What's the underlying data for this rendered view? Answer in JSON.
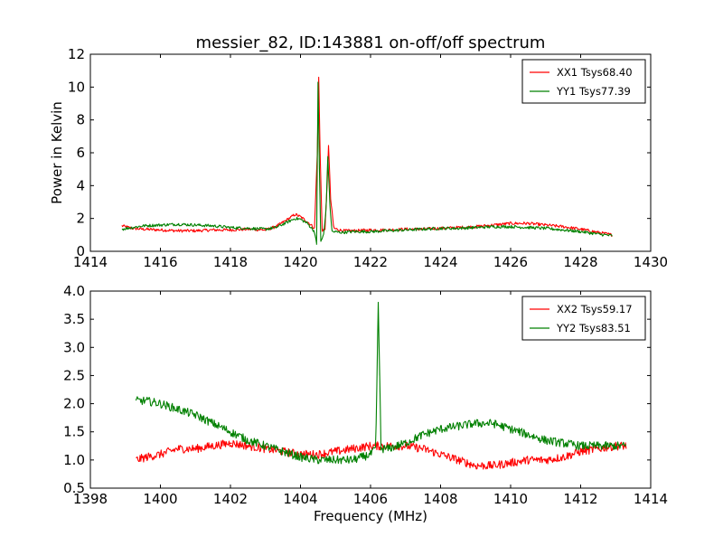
{
  "figure": {
    "title": "messier_82, ID:143881 on-off/off spectrum"
  },
  "chart_data": [
    {
      "type": "line",
      "title": "messier_82, ID:143881 on-off/off spectrum",
      "xlabel": "",
      "ylabel": "Power in Kelvin",
      "xlim": [
        1414,
        1430
      ],
      "ylim": [
        0,
        12
      ],
      "xticks": [
        1414,
        1416,
        1418,
        1420,
        1422,
        1424,
        1426,
        1428,
        1430
      ],
      "yticks": [
        0,
        2,
        4,
        6,
        8,
        10,
        12
      ],
      "legend_position": "top-right",
      "series": [
        {
          "name": "XX1 Tsys68.40",
          "color": "#ff0000",
          "x": [
            1414.9,
            1415.2,
            1415.5,
            1416.0,
            1416.5,
            1417.0,
            1417.5,
            1418.0,
            1418.5,
            1419.0,
            1419.3,
            1419.6,
            1419.85,
            1420.0,
            1420.2,
            1420.4,
            1420.48,
            1420.52,
            1420.56,
            1420.62,
            1420.7,
            1420.76,
            1420.8,
            1420.86,
            1420.95,
            1421.2,
            1421.5,
            1422.0,
            1422.5,
            1423.0,
            1423.5,
            1424.0,
            1424.5,
            1425.0,
            1425.5,
            1426.0,
            1426.5,
            1427.0,
            1427.5,
            1428.0,
            1428.5,
            1428.9
          ],
          "y": [
            1.55,
            1.4,
            1.35,
            1.3,
            1.25,
            1.25,
            1.3,
            1.3,
            1.35,
            1.3,
            1.5,
            1.9,
            2.25,
            2.1,
            1.8,
            1.4,
            6.0,
            10.6,
            6.0,
            1.2,
            1.4,
            4.0,
            6.5,
            3.2,
            1.4,
            1.25,
            1.25,
            1.3,
            1.3,
            1.35,
            1.35,
            1.4,
            1.45,
            1.5,
            1.6,
            1.7,
            1.7,
            1.6,
            1.5,
            1.35,
            1.15,
            1.0
          ]
        },
        {
          "name": "YY1 Tsys77.39",
          "color": "#008000",
          "x": [
            1414.9,
            1415.2,
            1415.5,
            1416.0,
            1416.5,
            1417.0,
            1417.5,
            1418.0,
            1418.5,
            1419.0,
            1419.3,
            1419.6,
            1419.85,
            1420.0,
            1420.2,
            1420.4,
            1420.46,
            1420.5,
            1420.54,
            1420.58,
            1420.66,
            1420.73,
            1420.78,
            1420.84,
            1420.9,
            1421.2,
            1421.5,
            1422.0,
            1422.5,
            1423.0,
            1423.5,
            1424.0,
            1424.5,
            1425.0,
            1425.5,
            1426.0,
            1426.5,
            1427.0,
            1427.5,
            1428.0,
            1428.5,
            1428.9
          ],
          "y": [
            1.35,
            1.45,
            1.55,
            1.6,
            1.65,
            1.6,
            1.55,
            1.45,
            1.4,
            1.35,
            1.45,
            1.75,
            2.0,
            1.95,
            1.7,
            1.2,
            0.4,
            10.3,
            5.0,
            0.6,
            1.0,
            2.5,
            5.8,
            2.8,
            1.2,
            1.15,
            1.2,
            1.2,
            1.25,
            1.3,
            1.35,
            1.4,
            1.4,
            1.45,
            1.5,
            1.5,
            1.45,
            1.4,
            1.3,
            1.2,
            1.05,
            0.95
          ]
        }
      ]
    },
    {
      "type": "line",
      "title": "",
      "xlabel": "Frequency (MHz)",
      "ylabel": "",
      "xlim": [
        1398,
        1414
      ],
      "ylim": [
        0.5,
        4.0
      ],
      "xticks": [
        1398,
        1400,
        1402,
        1404,
        1406,
        1408,
        1410,
        1412,
        1414
      ],
      "yticks": [
        0.5,
        1.0,
        1.5,
        2.0,
        2.5,
        3.0,
        3.5,
        4.0
      ],
      "ytick_labels": [
        "0.5",
        "1.0",
        "1.5",
        "2.0",
        "2.5",
        "3.0",
        "3.5",
        "4.0"
      ],
      "legend_position": "top-right",
      "series": [
        {
          "name": "XX2 Tsys59.17",
          "color": "#ff0000",
          "x": [
            1399.3,
            1399.6,
            1400.0,
            1400.5,
            1401.0,
            1401.5,
            1402.0,
            1402.5,
            1403.0,
            1403.5,
            1404.0,
            1404.5,
            1405.0,
            1405.5,
            1406.0,
            1406.5,
            1407.0,
            1407.5,
            1408.0,
            1408.5,
            1409.0,
            1409.5,
            1410.0,
            1410.5,
            1411.0,
            1411.5,
            1412.0,
            1412.5,
            1413.0,
            1413.3
          ],
          "y": [
            1.0,
            1.05,
            1.1,
            1.2,
            1.2,
            1.25,
            1.3,
            1.25,
            1.2,
            1.15,
            1.1,
            1.1,
            1.15,
            1.2,
            1.25,
            1.25,
            1.25,
            1.2,
            1.1,
            1.0,
            0.9,
            0.9,
            0.95,
            1.0,
            1.0,
            1.05,
            1.15,
            1.2,
            1.25,
            1.25
          ]
        },
        {
          "name": "YY2 Tsys83.51",
          "color": "#008000",
          "x": [
            1399.3,
            1399.6,
            1400.0,
            1400.5,
            1401.0,
            1401.5,
            1402.0,
            1402.5,
            1403.0,
            1403.5,
            1404.0,
            1404.5,
            1405.0,
            1405.5,
            1406.0,
            1406.15,
            1406.22,
            1406.3,
            1406.5,
            1407.0,
            1407.5,
            1408.0,
            1408.5,
            1409.0,
            1409.5,
            1410.0,
            1410.5,
            1411.0,
            1411.5,
            1412.0,
            1412.5,
            1413.0,
            1413.3
          ],
          "y": [
            2.05,
            2.05,
            2.0,
            1.9,
            1.8,
            1.65,
            1.5,
            1.35,
            1.25,
            1.15,
            1.05,
            1.0,
            1.0,
            1.0,
            1.1,
            1.2,
            3.8,
            1.2,
            1.2,
            1.3,
            1.45,
            1.55,
            1.6,
            1.65,
            1.65,
            1.55,
            1.45,
            1.35,
            1.3,
            1.25,
            1.25,
            1.25,
            1.25
          ]
        }
      ]
    }
  ]
}
